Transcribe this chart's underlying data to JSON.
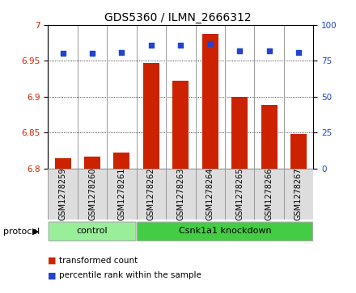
{
  "title": "GDS5360 / ILMN_2666312",
  "samples": [
    "GSM1278259",
    "GSM1278260",
    "GSM1278261",
    "GSM1278262",
    "GSM1278263",
    "GSM1278264",
    "GSM1278265",
    "GSM1278266",
    "GSM1278267"
  ],
  "transformed_counts": [
    6.814,
    6.816,
    6.822,
    6.947,
    6.922,
    6.988,
    6.9,
    6.888,
    6.848
  ],
  "percentile_ranks": [
    80,
    80,
    81,
    86,
    86,
    87,
    82,
    82,
    81
  ],
  "ylim_left": [
    6.8,
    7.0
  ],
  "ylim_right": [
    0,
    100
  ],
  "yticks_left": [
    6.8,
    6.85,
    6.9,
    6.95,
    7.0
  ],
  "yticks_right": [
    0,
    25,
    50,
    75,
    100
  ],
  "bar_color": "#cc2200",
  "dot_color": "#2244cc",
  "protocol_groups": [
    {
      "label": "control",
      "start": 0,
      "end": 3,
      "color": "#99ee99"
    },
    {
      "label": "Csnk1a1 knockdown",
      "start": 3,
      "end": 9,
      "color": "#44cc44"
    }
  ],
  "protocol_label": "protocol",
  "legend_bar_label": "transformed count",
  "legend_dot_label": "percentile rank within the sample",
  "bg_color": "#ffffff",
  "tick_label_color_left": "#cc2200",
  "tick_label_color_right": "#2244cc",
  "bar_bottom": 6.8,
  "cell_bg": "#dddddd",
  "cell_border": "#999999"
}
